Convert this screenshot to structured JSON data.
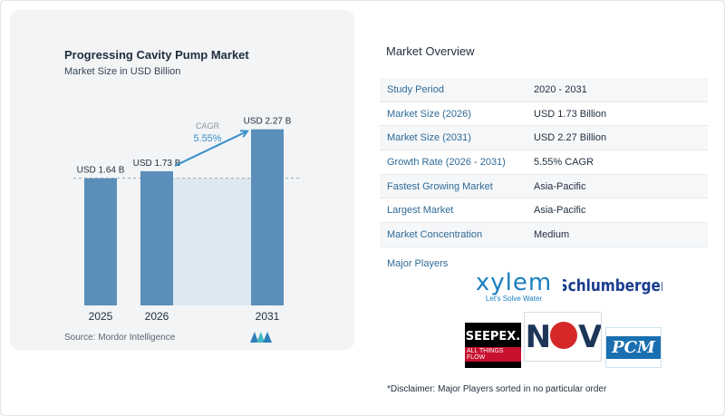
{
  "chart_data": {
    "type": "bar",
    "title": "Progressing Cavity Pump Market",
    "subtitle": "Market Size in USD Billion",
    "categories": [
      "2025",
      "2026",
      "2031"
    ],
    "values": [
      1.64,
      1.73,
      2.27
    ],
    "value_labels": [
      "USD 1.64 B",
      "USD 1.73 B",
      "USD 2.27 B"
    ],
    "ylim": [
      0,
      2.5
    ],
    "cagr_label": "CAGR",
    "cagr_value": "5.55%",
    "bar_color": "#5b8fb9",
    "shade_color": "#dde8f0",
    "accent_color": "#3a8fc9"
  },
  "source": "Source:  Mordor Intelligence",
  "overview": {
    "title": "Market Overview",
    "rows": [
      {
        "label": "Study Period",
        "value": "2020 - 2031"
      },
      {
        "label": "Market Size (2026)",
        "value": "USD 1.73 Billion"
      },
      {
        "label": "Market Size (2031)",
        "value": "USD 2.27 Billion"
      },
      {
        "label": "Growth Rate (2026 - 2031)",
        "value": "5.55% CAGR"
      },
      {
        "label": "Fastest Growing Market",
        "value": "Asia-Pacific"
      },
      {
        "label": "Largest Market",
        "value": "Asia-Pacific"
      },
      {
        "label": "Market Concentration",
        "value": "Medium"
      }
    ],
    "players_label": "Major Players",
    "logos": {
      "xylem": "xylem",
      "xylem_tag": "Let's Solve Water",
      "slb": "Schlumberger",
      "seepex": "SEEPEX.",
      "seepex_tag": "ALL THINGS FLOW",
      "nov_left": "N",
      "nov_right": "V",
      "pcm": "PCM"
    }
  },
  "disclaimer": "*Disclaimer: Major Players sorted in no particular order"
}
